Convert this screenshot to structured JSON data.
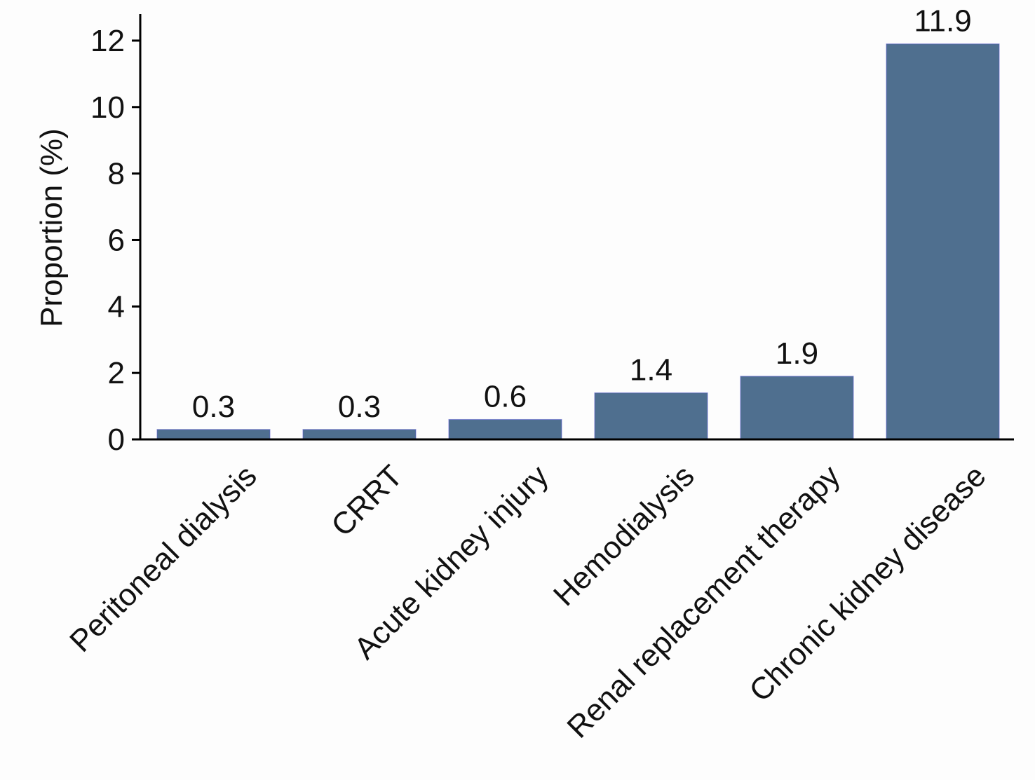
{
  "chart_data": {
    "type": "bar",
    "categories": [
      "Peritoneal dialysis",
      "CRRT",
      "Acute kidney injury",
      "Hemodialysis",
      "Renal replacement therapy",
      "Chronic kidney disease"
    ],
    "values": [
      0.3,
      0.3,
      0.6,
      1.4,
      1.9,
      11.9
    ],
    "value_labels": [
      "0.3",
      "0.3",
      "0.6",
      "1.4",
      "1.9",
      "11.9"
    ],
    "ylabel": "Proportion (%)",
    "xlabel": "",
    "ylim": [
      0,
      12.8
    ],
    "yticks": [
      0,
      2,
      4,
      6,
      8,
      10,
      12
    ],
    "ytick_labels": [
      "0",
      "2",
      "4",
      "6",
      "8",
      "10",
      "12"
    ],
    "grid": false,
    "legend": "none",
    "bar_color": "#4f6f8f",
    "bar_edge_color": "#5b5fcf"
  }
}
